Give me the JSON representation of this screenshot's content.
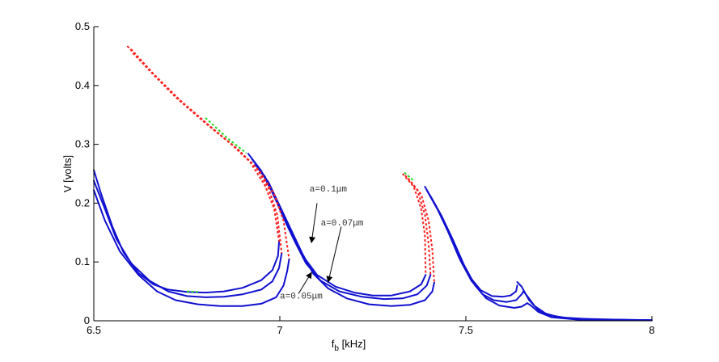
{
  "chart_data": {
    "type": "line",
    "title": "",
    "xlabel": "f",
    "xlabel_sub": "b",
    "xlabel_unit": " [kHz]",
    "ylabel": "V [volts]",
    "xlim": [
      6.5,
      8
    ],
    "ylim": [
      0,
      0.5
    ],
    "xticks": [
      "6.5",
      "7",
      "7.5",
      "8"
    ],
    "yticks": [
      "0",
      "0.1",
      "0.2",
      "0.3",
      "0.4",
      "0.5"
    ],
    "grid": false,
    "colors": {
      "stable": "#1010d0",
      "unstable": "#ff2020",
      "other": "#22dd22",
      "axis": "#000000"
    },
    "series": [
      {
        "stable": [
          [
            [
              6.5,
              0.256
            ],
            [
              6.52,
              0.215
            ],
            [
              6.55,
              0.16
            ],
            [
              6.58,
              0.116
            ],
            [
              6.62,
              0.081
            ],
            [
              6.66,
              0.062
            ],
            [
              6.7,
              0.053
            ],
            [
              6.75,
              0.049
            ],
            [
              6.8,
              0.048
            ],
            [
              6.85,
              0.05
            ],
            [
              6.9,
              0.056
            ],
            [
              6.95,
              0.069
            ],
            [
              6.98,
              0.086
            ],
            [
              6.995,
              0.11
            ],
            [
              6.998,
              0.135
            ]
          ],
          [
            [
              6.915,
              0.284
            ],
            [
              6.95,
              0.255
            ],
            [
              6.98,
              0.218
            ],
            [
              7.0,
              0.19
            ],
            [
              7.03,
              0.15
            ],
            [
              7.06,
              0.112
            ],
            [
              7.1,
              0.078
            ],
            [
              7.15,
              0.058
            ],
            [
              7.2,
              0.048
            ],
            [
              7.25,
              0.043
            ],
            [
              7.3,
              0.043
            ],
            [
              7.35,
              0.05
            ],
            [
              7.38,
              0.062
            ],
            [
              7.392,
              0.078
            ]
          ],
          [
            [
              7.39,
              0.228
            ],
            [
              7.42,
              0.195
            ],
            [
              7.45,
              0.155
            ],
            [
              7.48,
              0.11
            ],
            [
              7.51,
              0.075
            ],
            [
              7.54,
              0.052
            ],
            [
              7.57,
              0.042
            ],
            [
              7.6,
              0.041
            ],
            [
              7.62,
              0.043
            ],
            [
              7.635,
              0.05
            ],
            [
              7.638,
              0.06
            ]
          ],
          [
            [
              7.638,
              0.066
            ],
            [
              7.65,
              0.058
            ],
            [
              7.67,
              0.035
            ],
            [
              7.7,
              0.015
            ],
            [
              7.75,
              0.006
            ],
            [
              7.85,
              0.002
            ],
            [
              8.0,
              0.001
            ]
          ]
        ],
        "unstable": [
          [
            [
              6.59,
              0.467
            ],
            [
              6.65,
              0.425
            ],
            [
              6.72,
              0.38
            ],
            [
              6.8,
              0.336
            ],
            [
              6.87,
              0.3
            ],
            [
              6.92,
              0.27
            ],
            [
              6.96,
              0.23
            ],
            [
              6.985,
              0.19
            ],
            [
              6.998,
              0.135
            ]
          ],
          [
            [
              7.33,
              0.25
            ],
            [
              7.36,
              0.228
            ],
            [
              7.38,
              0.19
            ],
            [
              7.39,
              0.145
            ],
            [
              7.392,
              0.078
            ]
          ]
        ]
      },
      {
        "stable": [
          [
            [
              6.5,
              0.238
            ],
            [
              6.53,
              0.19
            ],
            [
              6.56,
              0.14
            ],
            [
              6.6,
              0.098
            ],
            [
              6.65,
              0.068
            ],
            [
              6.7,
              0.05
            ],
            [
              6.75,
              0.042
            ],
            [
              6.8,
              0.04
            ],
            [
              6.85,
              0.041
            ],
            [
              6.9,
              0.045
            ],
            [
              6.95,
              0.053
            ],
            [
              6.98,
              0.067
            ],
            [
              6.998,
              0.09
            ],
            [
              7.005,
              0.115
            ]
          ],
          [
            [
              6.925,
              0.275
            ],
            [
              6.96,
              0.245
            ],
            [
              6.99,
              0.205
            ],
            [
              7.01,
              0.175
            ],
            [
              7.04,
              0.135
            ],
            [
              7.07,
              0.098
            ],
            [
              7.11,
              0.068
            ],
            [
              7.16,
              0.05
            ],
            [
              7.22,
              0.041
            ],
            [
              7.28,
              0.037
            ],
            [
              7.33,
              0.038
            ],
            [
              7.37,
              0.045
            ],
            [
              7.395,
              0.06
            ],
            [
              7.405,
              0.078
            ]
          ],
          [
            [
              7.395,
              0.222
            ],
            [
              7.425,
              0.188
            ],
            [
              7.455,
              0.148
            ],
            [
              7.485,
              0.103
            ],
            [
              7.515,
              0.068
            ],
            [
              7.545,
              0.045
            ],
            [
              7.575,
              0.035
            ],
            [
              7.61,
              0.032
            ],
            [
              7.635,
              0.035
            ],
            [
              7.65,
              0.045
            ],
            [
              7.655,
              0.05
            ]
          ],
          [
            [
              7.655,
              0.05
            ],
            [
              7.665,
              0.042
            ],
            [
              7.685,
              0.025
            ],
            [
              7.72,
              0.01
            ],
            [
              7.78,
              0.004
            ],
            [
              7.9,
              0.002
            ],
            [
              8.0,
              0.001
            ]
          ]
        ],
        "unstable": [
          [
            [
              6.6,
              0.462
            ],
            [
              6.66,
              0.42
            ],
            [
              6.73,
              0.376
            ],
            [
              6.81,
              0.332
            ],
            [
              6.88,
              0.295
            ],
            [
              6.935,
              0.262
            ],
            [
              6.97,
              0.225
            ],
            [
              6.993,
              0.18
            ],
            [
              7.005,
              0.115
            ]
          ],
          [
            [
              7.337,
              0.247
            ],
            [
              7.37,
              0.222
            ],
            [
              7.39,
              0.18
            ],
            [
              7.4,
              0.13
            ],
            [
              7.405,
              0.078
            ]
          ]
        ]
      },
      {
        "stable": [
          [
            [
              6.5,
              0.222
            ],
            [
              6.53,
              0.17
            ],
            [
              6.57,
              0.118
            ],
            [
              6.62,
              0.078
            ],
            [
              6.67,
              0.05
            ],
            [
              6.72,
              0.035
            ],
            [
              6.78,
              0.028
            ],
            [
              6.84,
              0.025
            ],
            [
              6.9,
              0.025
            ],
            [
              6.95,
              0.029
            ],
            [
              6.99,
              0.04
            ],
            [
              7.01,
              0.06
            ],
            [
              7.02,
              0.085
            ],
            [
              7.025,
              0.105
            ]
          ],
          [
            [
              6.935,
              0.265
            ],
            [
              6.97,
              0.235
            ],
            [
              7.0,
              0.195
            ],
            [
              7.03,
              0.155
            ],
            [
              7.06,
              0.115
            ],
            [
              7.09,
              0.08
            ],
            [
              7.13,
              0.055
            ],
            [
              7.18,
              0.038
            ],
            [
              7.24,
              0.028
            ],
            [
              7.3,
              0.025
            ],
            [
              7.35,
              0.027
            ],
            [
              7.39,
              0.035
            ],
            [
              7.41,
              0.05
            ],
            [
              7.415,
              0.065
            ]
          ],
          [
            [
              7.405,
              0.212
            ],
            [
              7.435,
              0.178
            ],
            [
              7.465,
              0.138
            ],
            [
              7.495,
              0.095
            ],
            [
              7.525,
              0.06
            ],
            [
              7.555,
              0.038
            ],
            [
              7.59,
              0.026
            ],
            [
              7.63,
              0.022
            ],
            [
              7.65,
              0.024
            ],
            [
              7.66,
              0.028
            ],
            [
              7.665,
              0.03
            ]
          ],
          [
            [
              7.665,
              0.03
            ],
            [
              7.675,
              0.026
            ],
            [
              7.695,
              0.015
            ],
            [
              7.73,
              0.006
            ],
            [
              7.8,
              0.002
            ],
            [
              8.0,
              0.001
            ]
          ]
        ],
        "unstable": [
          [
            [
              6.605,
              0.455
            ],
            [
              6.67,
              0.413
            ],
            [
              6.74,
              0.37
            ],
            [
              6.82,
              0.326
            ],
            [
              6.89,
              0.29
            ],
            [
              6.945,
              0.255
            ],
            [
              6.985,
              0.215
            ],
            [
              7.01,
              0.17
            ],
            [
              7.025,
              0.105
            ]
          ],
          [
            [
              7.345,
              0.242
            ],
            [
              7.38,
              0.215
            ],
            [
              7.4,
              0.17
            ],
            [
              7.41,
              0.12
            ],
            [
              7.415,
              0.065
            ]
          ]
        ]
      }
    ],
    "other_segments": [
      [
        [
          6.8,
          0.345
        ],
        [
          6.86,
          0.31
        ],
        [
          6.91,
          0.285
        ]
      ],
      [
        [
          7.335,
          0.252
        ],
        [
          7.36,
          0.238
        ]
      ],
      [
        [
          6.75,
          0.05
        ],
        [
          6.78,
          0.049
        ]
      ]
    ],
    "annotations": [
      {
        "text": "a=0.1μm",
        "tx": 7.08,
        "ty": 0.22,
        "from": [
          7.1,
          0.2
        ],
        "to": [
          7.085,
          0.133
        ]
      },
      {
        "text": "a=0.07μm",
        "tx": 7.11,
        "ty": 0.162,
        "from": [
          7.165,
          0.16
        ],
        "to": [
          7.13,
          0.066
        ]
      },
      {
        "text": "a=0.05μm",
        "tx": 7.0,
        "ty": 0.038,
        "from": [
          7.05,
          0.046
        ],
        "to": [
          7.085,
          0.082
        ]
      }
    ]
  }
}
